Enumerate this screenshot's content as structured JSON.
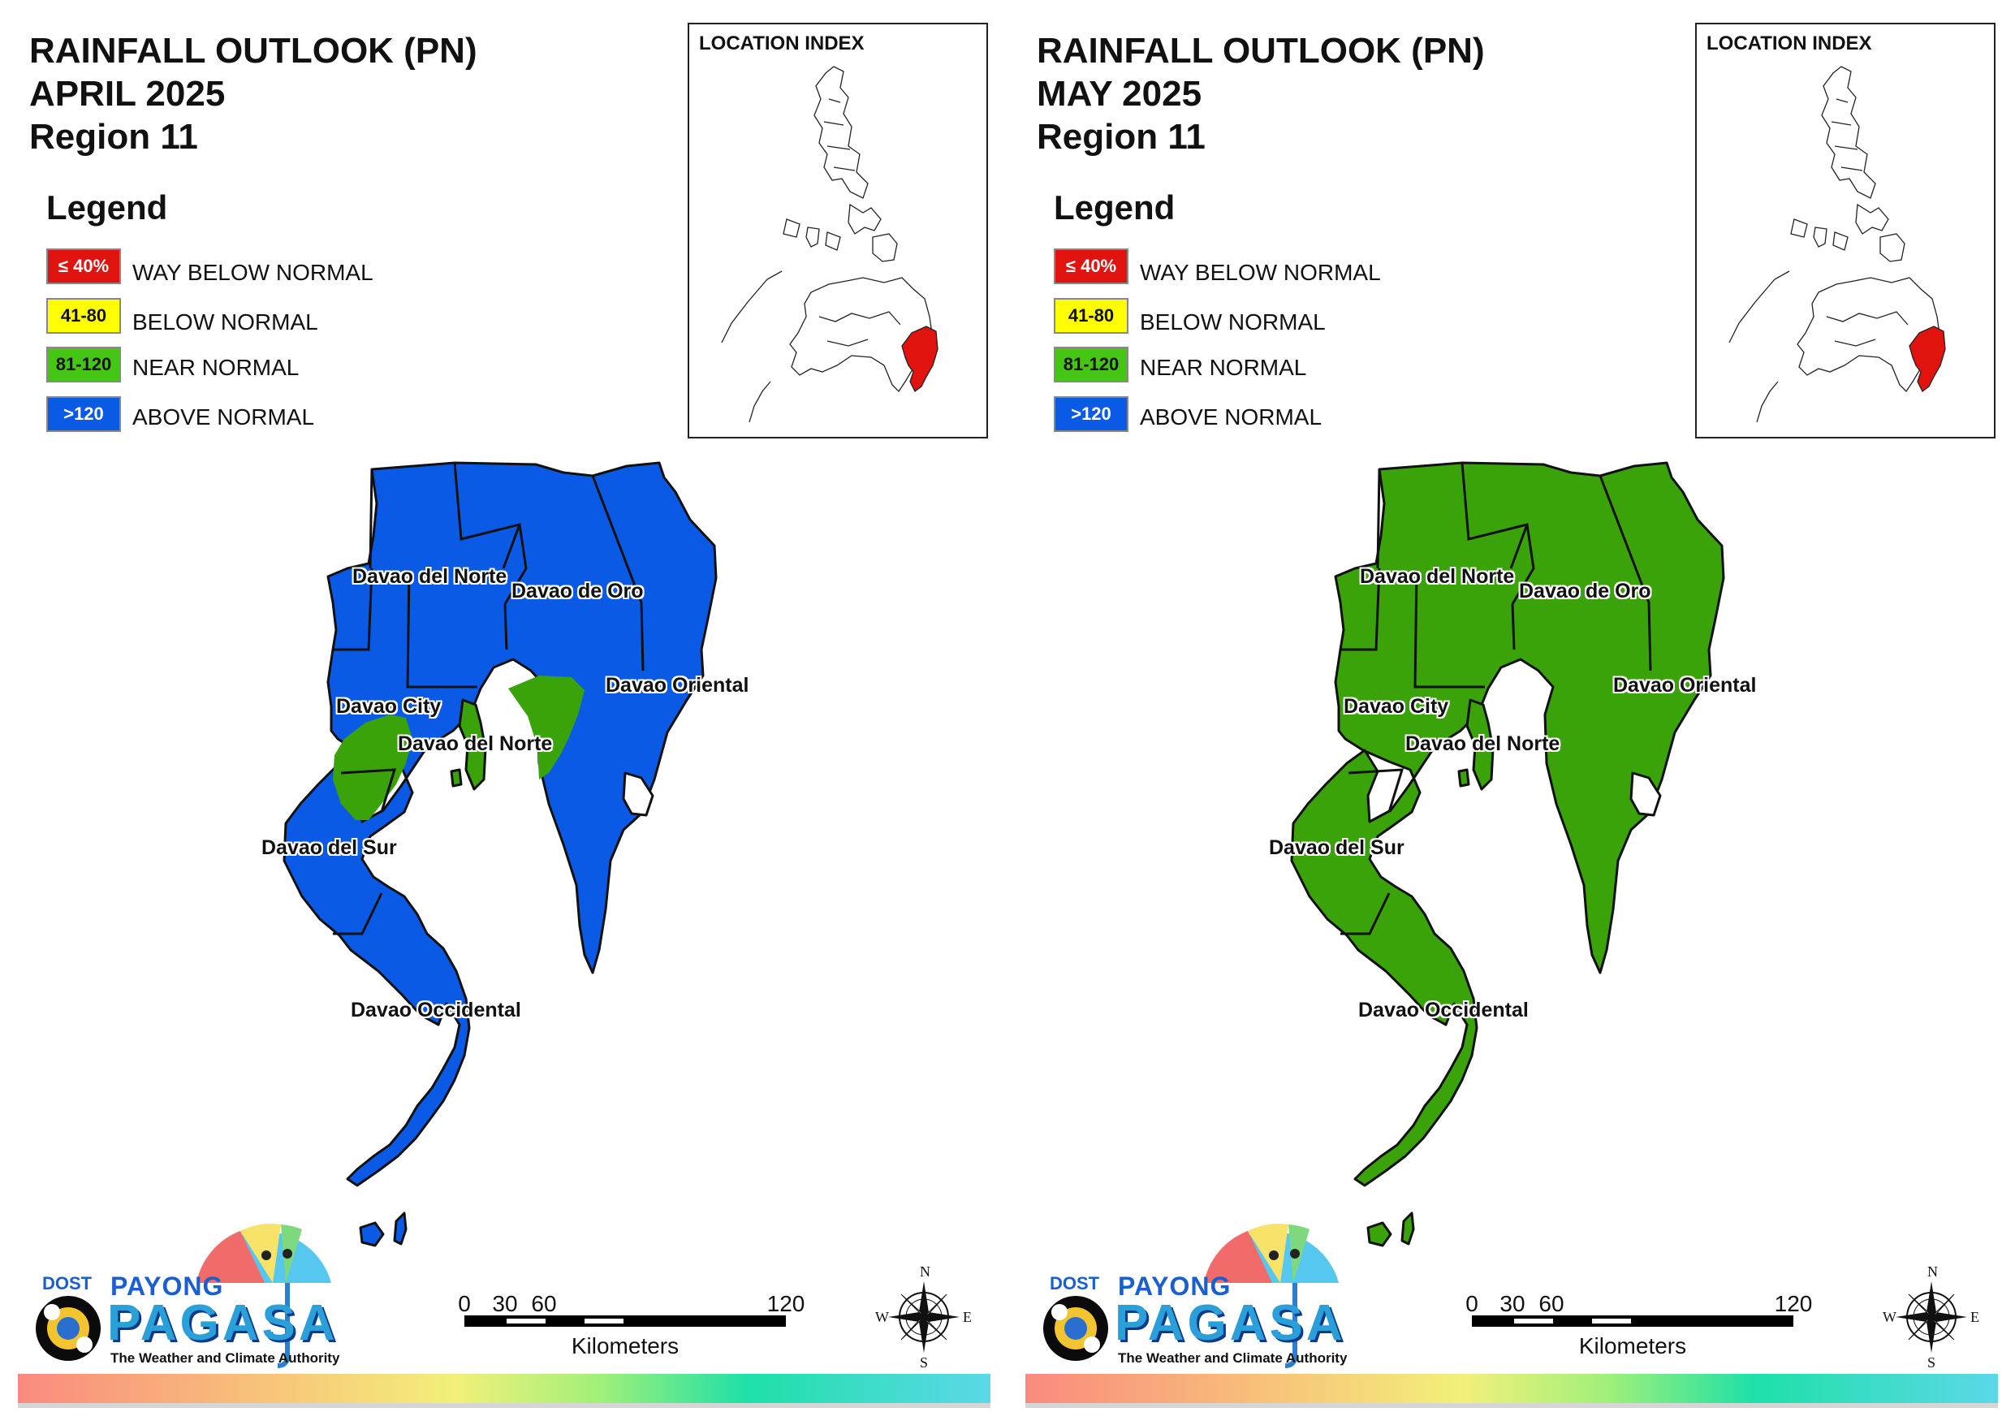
{
  "panels": [
    {
      "title_line1": "RAINFALL OUTLOOK (PN)",
      "title_line2": "APRIL 2025",
      "title_line3": "Region 11",
      "fill_color": "#0a5ae6",
      "near_normal_color": "#3aa30a"
    },
    {
      "title_line1": "RAINFALL OUTLOOK (PN)",
      "title_line2": "MAY 2025",
      "title_line3": "Region 11",
      "fill_color": "#3aa30a",
      "near_normal_color": "#3aa30a"
    }
  ],
  "legend": {
    "title": "Legend",
    "items": [
      {
        "range": "≤ 40%",
        "label": "WAY BELOW NORMAL",
        "color": "#e0130f",
        "text_color": "#ffffff"
      },
      {
        "range": "41-80",
        "label": "BELOW NORMAL",
        "color": "#ffff00",
        "text_color": "#111111"
      },
      {
        "range": "81-120",
        "label": "NEAR NORMAL",
        "color": "#46c614",
        "text_color": "#111111"
      },
      {
        "range": ">120",
        "label": "ABOVE NORMAL",
        "color": "#0a5ae6",
        "text_color": "#ffffff"
      }
    ]
  },
  "location_index": {
    "title": "LOCATION INDEX",
    "highlight_color": "#e0130f"
  },
  "places": {
    "davao_del_norte_1": "Davao del Norte",
    "davao_de_oro": "Davao de Oro",
    "davao_oriental": "Davao Oriental",
    "davao_city": "Davao City",
    "davao_del_norte_2": "Davao del Norte",
    "davao_del_sur": "Davao del Sur",
    "davao_occidental": "Davao Occidental"
  },
  "scale": {
    "ticks": [
      "0",
      "30",
      "60",
      "120"
    ],
    "unit": "Kilometers"
  },
  "compass": {
    "n": "N",
    "s": "S",
    "e": "E",
    "w": "W"
  },
  "logo": {
    "dost": "DOST",
    "payong": "PAYONG",
    "pagasa": "PAGASA",
    "tagline": "The Weather and Climate Authority"
  }
}
